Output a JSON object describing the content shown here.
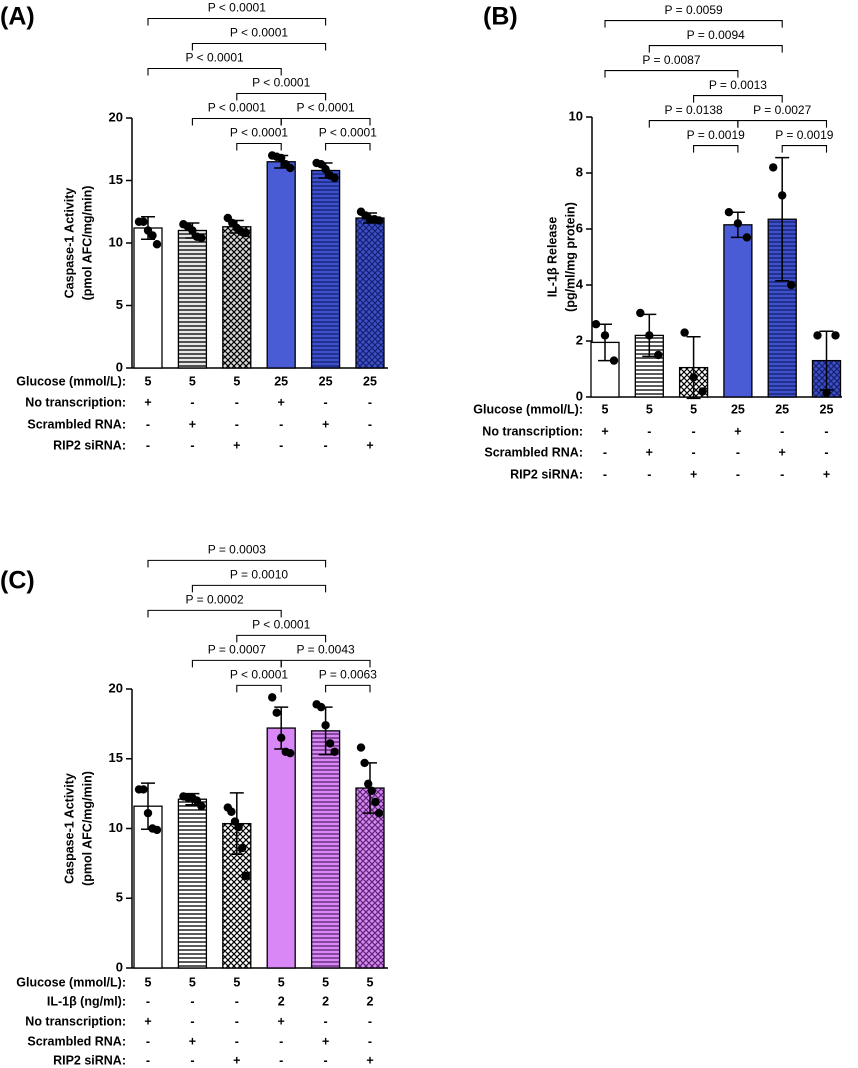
{
  "chart_data": [
    {
      "type": "bar",
      "panel": "(A)",
      "ylabel": [
        "Caspase-1 Activity",
        "(pmol AFC/mg/min)"
      ],
      "ylim": [
        0,
        20
      ],
      "yticks": [
        0,
        5,
        10,
        15,
        20
      ],
      "values": [
        11.2,
        11.0,
        11.3,
        16.5,
        15.8,
        12.0
      ],
      "errors": [
        0.9,
        0.6,
        0.5,
        0.5,
        0.6,
        0.4
      ],
      "points": [
        [
          11.7,
          11.7,
          11.0,
          10.6,
          9.9
        ],
        [
          11.5,
          11.3,
          11.0,
          10.5,
          10.4
        ],
        [
          12.0,
          11.6,
          11.2,
          10.9,
          10.8
        ],
        [
          17.0,
          16.9,
          16.8,
          16.3,
          16.0
        ],
        [
          16.4,
          16.3,
          15.9,
          15.4,
          15.2
        ],
        [
          12.5,
          12.2,
          11.9,
          11.9,
          11.8
        ]
      ],
      "colors": [
        "#ffffff",
        "#e6e6e6",
        "#d9d9d9",
        "#4a5bd6",
        "#3e50cc",
        "#3e50c8"
      ],
      "patterns": [
        "none",
        "horizontal",
        "crosshatch",
        "none",
        "horizontal",
        "crosshatch"
      ],
      "hatch_colors": [
        "#000000",
        "#000000",
        "#000000",
        "#000000",
        "#14206e",
        "#14206e"
      ],
      "conditions": [
        {
          "label": "Glucose (mmol/L):",
          "values": [
            "5",
            "5",
            "5",
            "25",
            "25",
            "25"
          ]
        },
        {
          "label": "No transcription:",
          "values": [
            "+",
            "-",
            "-",
            "+",
            "-",
            "-"
          ]
        },
        {
          "label": "Scrambled RNA:",
          "values": [
            "-",
            "+",
            "-",
            "-",
            "+",
            "-"
          ]
        },
        {
          "label": "RIP2 siRNA:",
          "values": [
            "-",
            "-",
            "+",
            "-",
            "-",
            "+"
          ]
        }
      ],
      "comparisons": [
        {
          "pair": [
            0,
            4
          ],
          "label": "P < 0.0001"
        },
        {
          "pair": [
            1,
            4
          ],
          "label": "P < 0.0001"
        },
        {
          "pair": [
            0,
            3
          ],
          "label": "P < 0.0001"
        },
        {
          "pair": [
            2,
            4
          ],
          "label": "P < 0.0001"
        },
        {
          "pair": [
            1,
            3
          ],
          "label": "P < 0.0001"
        },
        {
          "pair": [
            3,
            5
          ],
          "label": "P < 0.0001"
        },
        {
          "pair": [
            2,
            3
          ],
          "label": "P < 0.0001"
        },
        {
          "pair": [
            4,
            5
          ],
          "label": "P < 0.0001"
        }
      ]
    },
    {
      "type": "bar",
      "panel": "(B)",
      "ylabel": [
        "IL-1β Release",
        "(pg/ml/mg protein)"
      ],
      "ylim": [
        0,
        10
      ],
      "yticks": [
        0,
        2,
        4,
        6,
        8,
        10
      ],
      "values": [
        1.95,
        2.2,
        1.05,
        6.15,
        6.35,
        1.3
      ],
      "errors": [
        0.65,
        0.75,
        1.1,
        0.45,
        2.2,
        1.05
      ],
      "points": [
        [
          2.6,
          2.2,
          1.3
        ],
        [
          3.0,
          2.2,
          1.5
        ],
        [
          2.3,
          0.7,
          0.2
        ],
        [
          6.6,
          6.2,
          5.7
        ],
        [
          8.2,
          7.2,
          4.0
        ],
        [
          2.2,
          0.15,
          2.2
        ]
      ],
      "colors": [
        "#ffffff",
        "#ffffff",
        "#ffffff",
        "#4a5bd6",
        "#3e50cc",
        "#3e50c8"
      ],
      "patterns": [
        "none",
        "horizontal",
        "crosshatch",
        "none",
        "horizontal",
        "crosshatch"
      ],
      "hatch_colors": [
        "#000000",
        "#000000",
        "#000000",
        "#000000",
        "#14206e",
        "#14206e"
      ],
      "conditions": [
        {
          "label": "Glucose (mmol/L):",
          "values": [
            "5",
            "5",
            "5",
            "25",
            "25",
            "25"
          ]
        },
        {
          "label": "No transcription:",
          "values": [
            "+",
            "-",
            "-",
            "+",
            "-",
            "-"
          ]
        },
        {
          "label": "Scrambled RNA:",
          "values": [
            "-",
            "+",
            "-",
            "-",
            "+",
            "-"
          ]
        },
        {
          "label": "RIP2 siRNA:",
          "values": [
            "-",
            "-",
            "+",
            "-",
            "-",
            "+"
          ]
        }
      ],
      "comparisons": [
        {
          "pair": [
            0,
            4
          ],
          "label": "P = 0.0059"
        },
        {
          "pair": [
            1,
            4
          ],
          "label": "P = 0.0094"
        },
        {
          "pair": [
            0,
            3
          ],
          "label": "P = 0.0087"
        },
        {
          "pair": [
            2,
            4
          ],
          "label": "P = 0.0013"
        },
        {
          "pair": [
            1,
            3
          ],
          "label": "P = 0.0138"
        },
        {
          "pair": [
            3,
            5
          ],
          "label": "P = 0.0027"
        },
        {
          "pair": [
            2,
            3
          ],
          "label": "P = 0.0019"
        },
        {
          "pair": [
            4,
            5
          ],
          "label": "P = 0.0019"
        }
      ]
    },
    {
      "type": "bar",
      "panel": "(C)",
      "ylabel": [
        "Caspase-1 Activity",
        "(pmol AFC/mg/min)"
      ],
      "ylim": [
        0,
        20
      ],
      "yticks": [
        0,
        5,
        10,
        15,
        20
      ],
      "values": [
        11.6,
        12.1,
        10.35,
        17.2,
        17.0,
        12.9
      ],
      "errors": [
        1.65,
        0.4,
        2.2,
        1.5,
        1.7,
        1.8
      ],
      "points": [
        [
          12.8,
          12.8,
          11.1,
          10.0,
          9.9
        ],
        [
          12.3,
          12.2,
          12.2,
          12.0,
          11.6
        ],
        [
          11.5,
          11.2,
          10.5,
          10.1,
          8.6,
          6.6
        ],
        [
          19.4,
          18.3,
          16.5,
          15.5,
          15.4
        ],
        [
          18.9,
          18.7,
          17.4,
          16.1,
          15.5
        ],
        [
          15.8,
          14.7,
          13.2,
          12.7,
          11.9,
          11.1
        ]
      ],
      "colors": [
        "#ffffff",
        "#ffffff",
        "#ffffff",
        "#d987f7",
        "#d987f7",
        "#d987f7"
      ],
      "patterns": [
        "none",
        "horizontal",
        "crosshatch",
        "none",
        "horizontal",
        "crosshatch"
      ],
      "hatch_colors": [
        "#000000",
        "#000000",
        "#000000",
        "#000000",
        "#5a2570",
        "#5a2570"
      ],
      "conditions": [
        {
          "label": "Glucose (mmol/L):",
          "values": [
            "5",
            "5",
            "5",
            "5",
            "5",
            "5"
          ]
        },
        {
          "label": "IL-1β (ng/ml):",
          "values": [
            "-",
            "-",
            "-",
            "2",
            "2",
            "2"
          ]
        },
        {
          "label": "No transcription:",
          "values": [
            "+",
            "-",
            "-",
            "+",
            "-",
            "-"
          ]
        },
        {
          "label": "Scrambled RNA:",
          "values": [
            "-",
            "+",
            "-",
            "-",
            "+",
            "-"
          ]
        },
        {
          "label": "RIP2 siRNA:",
          "values": [
            "-",
            "-",
            "+",
            "-",
            "-",
            "+"
          ]
        }
      ],
      "comparisons": [
        {
          "pair": [
            0,
            4
          ],
          "label": "P = 0.0003"
        },
        {
          "pair": [
            1,
            4
          ],
          "label": "P = 0.0010"
        },
        {
          "pair": [
            0,
            3
          ],
          "label": "P = 0.0002"
        },
        {
          "pair": [
            2,
            4
          ],
          "label": "P < 0.0001"
        },
        {
          "pair": [
            1,
            3
          ],
          "label": "P = 0.0007"
        },
        {
          "pair": [
            3,
            5
          ],
          "label": "P = 0.0043"
        },
        {
          "pair": [
            2,
            3
          ],
          "label": "P < 0.0001"
        },
        {
          "pair": [
            4,
            5
          ],
          "label": "P = 0.0063"
        }
      ]
    }
  ]
}
